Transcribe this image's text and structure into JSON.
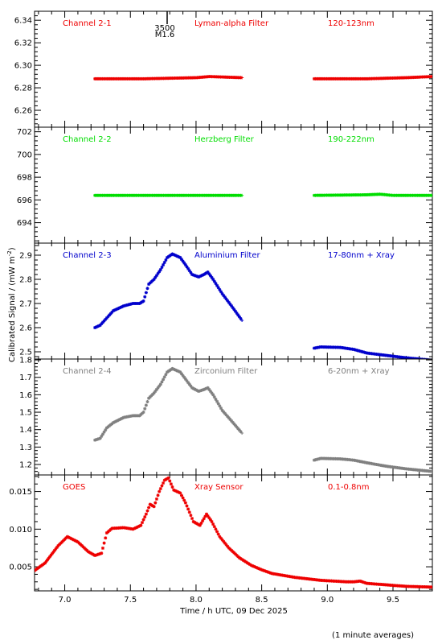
{
  "figure": {
    "ylabel": "Calibrated Signal / (mW m",
    "ylabel_sup": "-2",
    "ylabel_close": ")",
    "xlabel": "Time / h UTC, 09 Dec 2025",
    "footnote": "(1 minute averages)",
    "marker_top": "3500",
    "marker_bottom": "M1.6",
    "marker_x": 7.78
  },
  "chart_data": [
    {
      "type": "scatter",
      "labels": [
        "Channel 2-1",
        "Lyman-alpha Filter",
        "120-123nm"
      ],
      "color": "#ee0000",
      "xlim": [
        6.77,
        9.8
      ],
      "ylim": [
        6.245,
        6.348
      ],
      "yticks": [
        "6.26",
        "6.28",
        "6.30",
        "6.32",
        "6.34"
      ],
      "segments": [
        [
          [
            7.23,
            6.288
          ],
          [
            7.6,
            6.288
          ],
          [
            8.0,
            6.289
          ],
          [
            8.1,
            6.29
          ],
          [
            8.35,
            6.289
          ]
        ],
        [
          [
            8.9,
            6.288
          ],
          [
            9.3,
            6.288
          ],
          [
            9.6,
            6.289
          ],
          [
            9.8,
            6.29
          ]
        ]
      ]
    },
    {
      "type": "scatter",
      "labels": [
        "Channel 2-2",
        "Herzberg Filter",
        "190-222nm"
      ],
      "color": "#00dd00",
      "xlim": [
        6.77,
        9.8
      ],
      "ylim": [
        692.2,
        702.4
      ],
      "yticks": [
        "694",
        "696",
        "698",
        "700",
        "702"
      ],
      "segments": [
        [
          [
            7.23,
            696.4
          ],
          [
            7.8,
            696.4
          ],
          [
            8.35,
            696.4
          ]
        ],
        [
          [
            8.9,
            696.4
          ],
          [
            9.3,
            696.45
          ],
          [
            9.4,
            696.5
          ],
          [
            9.5,
            696.4
          ],
          [
            9.8,
            696.4
          ]
        ]
      ]
    },
    {
      "type": "scatter",
      "labels": [
        "Channel 2-3",
        "Aluminium Filter",
        "17-80nm + Xray"
      ],
      "color": "#0000cc",
      "xlim": [
        6.77,
        9.8
      ],
      "ylim": [
        2.47,
        2.95
      ],
      "yticks": [
        "2.5",
        "2.6",
        "2.7",
        "2.8",
        "2.9"
      ],
      "segments": [
        [
          [
            7.23,
            2.6
          ],
          [
            7.27,
            2.61
          ],
          [
            7.32,
            2.64
          ],
          [
            7.37,
            2.67
          ],
          [
            7.45,
            2.69
          ],
          [
            7.52,
            2.7
          ],
          [
            7.57,
            2.7
          ],
          [
            7.6,
            2.71
          ],
          [
            7.64,
            2.78
          ],
          [
            7.68,
            2.8
          ],
          [
            7.73,
            2.84
          ],
          [
            7.78,
            2.89
          ],
          [
            7.82,
            2.905
          ],
          [
            7.88,
            2.89
          ],
          [
            7.92,
            2.86
          ],
          [
            7.97,
            2.82
          ],
          [
            8.02,
            2.81
          ],
          [
            8.06,
            2.82
          ],
          [
            8.09,
            2.83
          ],
          [
            8.13,
            2.8
          ],
          [
            8.2,
            2.74
          ],
          [
            8.27,
            2.69
          ],
          [
            8.35,
            2.63
          ]
        ],
        [
          [
            8.9,
            2.515
          ],
          [
            8.95,
            2.52
          ],
          [
            9.1,
            2.518
          ],
          [
            9.2,
            2.51
          ],
          [
            9.3,
            2.495
          ],
          [
            9.45,
            2.485
          ],
          [
            9.6,
            2.475
          ],
          [
            9.8,
            2.465
          ]
        ]
      ]
    },
    {
      "type": "scatter",
      "labels": [
        "Channel 2-4",
        "Zirconium Filter",
        "6-20nm + Xray"
      ],
      "color": "#808080",
      "xlim": [
        6.77,
        9.8
      ],
      "ylim": [
        1.14,
        1.805
      ],
      "yticks": [
        "1.2",
        "1.3",
        "1.4",
        "1.5",
        "1.6",
        "1.7",
        "1.8"
      ],
      "segments": [
        [
          [
            7.23,
            1.34
          ],
          [
            7.27,
            1.35
          ],
          [
            7.32,
            1.41
          ],
          [
            7.37,
            1.44
          ],
          [
            7.45,
            1.47
          ],
          [
            7.52,
            1.48
          ],
          [
            7.57,
            1.48
          ],
          [
            7.6,
            1.5
          ],
          [
            7.64,
            1.58
          ],
          [
            7.68,
            1.61
          ],
          [
            7.73,
            1.66
          ],
          [
            7.78,
            1.73
          ],
          [
            7.82,
            1.75
          ],
          [
            7.88,
            1.73
          ],
          [
            7.92,
            1.69
          ],
          [
            7.97,
            1.64
          ],
          [
            8.02,
            1.62
          ],
          [
            8.06,
            1.63
          ],
          [
            8.09,
            1.64
          ],
          [
            8.13,
            1.6
          ],
          [
            8.2,
            1.51
          ],
          [
            8.27,
            1.45
          ],
          [
            8.35,
            1.38
          ]
        ],
        [
          [
            8.9,
            1.225
          ],
          [
            8.95,
            1.235
          ],
          [
            9.1,
            1.232
          ],
          [
            9.2,
            1.225
          ],
          [
            9.3,
            1.21
          ],
          [
            9.45,
            1.19
          ],
          [
            9.6,
            1.175
          ],
          [
            9.8,
            1.16
          ]
        ]
      ]
    },
    {
      "type": "scatter",
      "labels": [
        "GOES",
        "Xray Sensor",
        "0.1-0.8nm"
      ],
      "color": "#ee0000",
      "xlim": [
        6.77,
        9.8
      ],
      "ylim": [
        0.0018,
        0.0172
      ],
      "yticks": [
        "0.005",
        "0.010",
        "0.015"
      ],
      "segments": [
        [
          [
            6.77,
            0.0045
          ],
          [
            6.85,
            0.0055
          ],
          [
            6.95,
            0.0078
          ],
          [
            7.02,
            0.009
          ],
          [
            7.1,
            0.0083
          ],
          [
            7.18,
            0.007
          ],
          [
            7.23,
            0.0065
          ],
          [
            7.28,
            0.0068
          ],
          [
            7.32,
            0.0095
          ],
          [
            7.36,
            0.0101
          ],
          [
            7.45,
            0.0102
          ],
          [
            7.52,
            0.01
          ],
          [
            7.58,
            0.0105
          ],
          [
            7.62,
            0.012
          ],
          [
            7.65,
            0.0133
          ],
          [
            7.68,
            0.013
          ],
          [
            7.72,
            0.015
          ],
          [
            7.76,
            0.0165
          ],
          [
            7.79,
            0.0168
          ],
          [
            7.83,
            0.0152
          ],
          [
            7.88,
            0.0148
          ],
          [
            7.92,
            0.0135
          ],
          [
            7.98,
            0.011
          ],
          [
            8.03,
            0.0105
          ],
          [
            8.08,
            0.012
          ],
          [
            8.12,
            0.011
          ],
          [
            8.18,
            0.009
          ],
          [
            8.25,
            0.0075
          ],
          [
            8.33,
            0.0062
          ],
          [
            8.42,
            0.0052
          ],
          [
            8.5,
            0.0046
          ],
          [
            8.58,
            0.0041
          ],
          [
            8.65,
            0.0039
          ],
          [
            8.75,
            0.0036
          ],
          [
            8.85,
            0.0034
          ],
          [
            8.95,
            0.0032
          ],
          [
            9.05,
            0.0031
          ],
          [
            9.15,
            0.003
          ],
          [
            9.2,
            0.003
          ],
          [
            9.25,
            0.0031
          ],
          [
            9.3,
            0.0028
          ],
          [
            9.45,
            0.0026
          ],
          [
            9.6,
            0.0024
          ],
          [
            9.8,
            0.0023
          ]
        ]
      ]
    }
  ]
}
